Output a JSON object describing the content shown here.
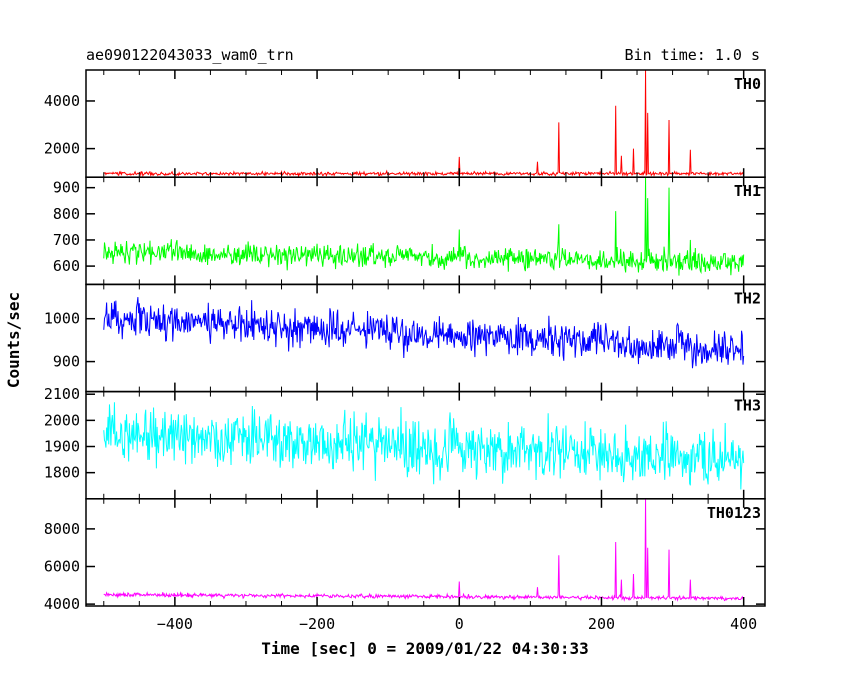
{
  "chart_data": {
    "type": "line",
    "title": "ae090122043033_wam0_trn",
    "bin_time_label": "Bin time: 1.0 s",
    "xlabel": "Time [sec] 0 = 2009/01/22 04:30:33",
    "ylabel": "Counts/sec",
    "xlim": [
      -525,
      430
    ],
    "x_ticks": [
      -400,
      -200,
      0,
      200,
      400
    ],
    "x_tick_labels": [
      "−400",
      "−200",
      "0",
      "200",
      "400"
    ],
    "panels": [
      {
        "name": "TH0",
        "color": "#ff0000",
        "ylim": [
          800,
          5300
        ],
        "y_ticks": [
          2000,
          4000
        ],
        "y_tick_labels": [
          "2000",
          "4000"
        ],
        "baseline": 950,
        "noise": 35,
        "trend": 0,
        "spikes": [
          [
            0,
            1650
          ],
          [
            110,
            1450
          ],
          [
            140,
            3100
          ],
          [
            220,
            3800
          ],
          [
            228,
            1700
          ],
          [
            245,
            2000
          ],
          [
            262,
            5300
          ],
          [
            265,
            3500
          ],
          [
            295,
            3200
          ],
          [
            325,
            1950
          ]
        ]
      },
      {
        "name": "TH1",
        "color": "#00ff00",
        "ylim": [
          530,
          940
        ],
        "y_ticks": [
          600,
          700,
          800,
          900
        ],
        "y_tick_labels": [
          "600",
          "700",
          "800",
          "900"
        ],
        "baseline": 655,
        "noise": 22,
        "trend": -40,
        "spikes": [
          [
            0,
            740
          ],
          [
            140,
            760
          ],
          [
            220,
            810
          ],
          [
            262,
            940
          ],
          [
            265,
            860
          ],
          [
            295,
            900
          ],
          [
            325,
            700
          ]
        ]
      },
      {
        "name": "TH2",
        "color": "#0000ff",
        "ylim": [
          830,
          1080
        ],
        "y_ticks": [
          900,
          1000
        ],
        "y_tick_labels": [
          "900",
          "1000"
        ],
        "baseline": 1000,
        "noise": 22,
        "trend": -70,
        "spikes": []
      },
      {
        "name": "TH3",
        "color": "#00ffff",
        "ylim": [
          1700,
          2110
        ],
        "y_ticks": [
          1800,
          1900,
          2000,
          2100
        ],
        "y_tick_labels": [
          "1800",
          "1900",
          "2000",
          "2100"
        ],
        "baseline": 1950,
        "noise": 55,
        "trend": -100,
        "spikes": []
      },
      {
        "name": "TH0123",
        "color": "#ff00ff",
        "ylim": [
          3900,
          9600
        ],
        "y_ticks": [
          4000,
          6000,
          8000
        ],
        "y_tick_labels": [
          "4000",
          "6000",
          "8000"
        ],
        "baseline": 4500,
        "noise": 50,
        "trend": -200,
        "spikes": [
          [
            0,
            5200
          ],
          [
            110,
            4900
          ],
          [
            140,
            6600
          ],
          [
            220,
            7300
          ],
          [
            228,
            5300
          ],
          [
            245,
            5600
          ],
          [
            262,
            9600
          ],
          [
            265,
            7000
          ],
          [
            295,
            6900
          ],
          [
            325,
            5300
          ]
        ]
      }
    ],
    "grid": false,
    "legend": "none"
  }
}
